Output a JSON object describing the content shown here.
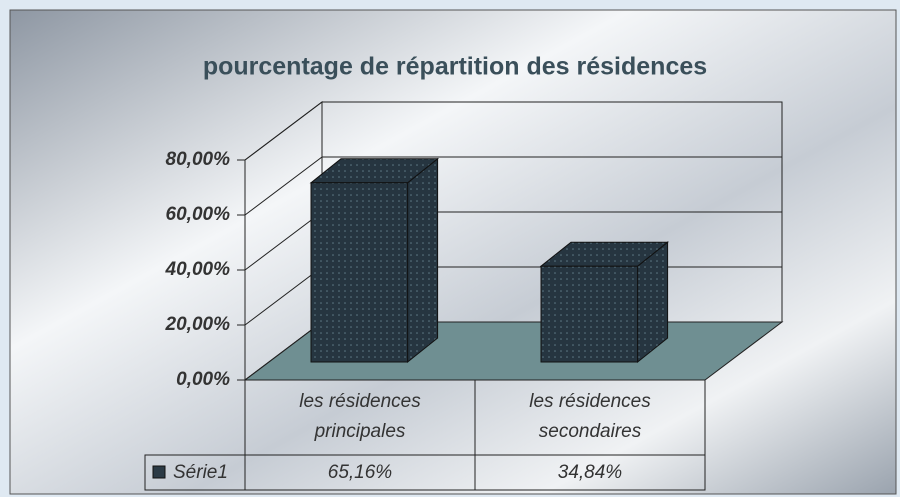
{
  "chart_data": {
    "type": "bar3d",
    "title": "pourcentage de répartition des résidences",
    "categories": [
      "les résidences principales",
      "les résidences secondaires"
    ],
    "series": [
      {
        "name": "Série1",
        "color": "#2b3a45",
        "values": [
          65.16,
          34.84
        ],
        "value_labels": [
          "65,16%",
          "34,84%"
        ]
      }
    ],
    "ylim": [
      0,
      80
    ],
    "yticks": [
      {
        "value": 0,
        "label": "0,00%"
      },
      {
        "value": 20,
        "label": "20,00%"
      },
      {
        "value": 40,
        "label": "40,00%"
      },
      {
        "value": 60,
        "label": "60,00%"
      },
      {
        "value": 80,
        "label": "80,00%"
      }
    ],
    "grid": true,
    "data_table": true
  }
}
